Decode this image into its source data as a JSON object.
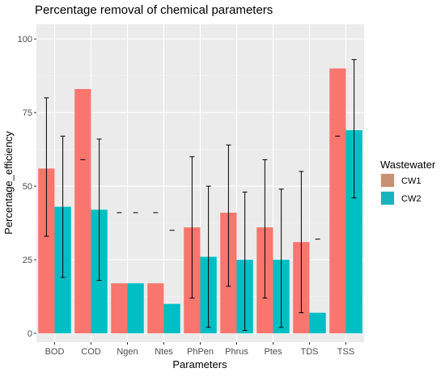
{
  "chart_data": {
    "type": "bar",
    "title": "Percentage removal of chemical parameters",
    "xlabel": "Parameters",
    "ylabel": "Percentage_efficiency",
    "categories": [
      "BOD",
      "COD",
      "Ngen",
      "Ntes",
      "PhPen",
      "Phrus",
      "Ptes",
      "TDS",
      "TSS"
    ],
    "yticks": [
      "0",
      "25",
      "50",
      "75",
      "100"
    ],
    "ylim": [
      -3,
      105
    ],
    "grid": true,
    "legend": {
      "title": "Wastewater",
      "position": "right"
    },
    "series": [
      {
        "name": "CW1",
        "color": "#f8766d",
        "legend_color": "#c99173",
        "values": [
          56,
          83,
          17,
          17,
          36,
          41,
          36,
          31,
          90
        ],
        "error_low": [
          33,
          59,
          41,
          41,
          12,
          16,
          12,
          7,
          67
        ],
        "error_high": [
          80,
          59,
          41,
          41,
          60,
          64,
          59,
          55,
          67
        ]
      },
      {
        "name": "CW2",
        "color": "#00bfc4",
        "legend_color": "#16b5bd",
        "values": [
          43,
          42,
          17,
          10,
          26,
          25,
          25,
          7,
          69
        ],
        "error_low": [
          19,
          18,
          41,
          35,
          2,
          1,
          2,
          32,
          46
        ],
        "error_high": [
          67,
          66,
          41,
          35,
          50,
          48,
          49,
          32,
          93
        ]
      }
    ]
  }
}
